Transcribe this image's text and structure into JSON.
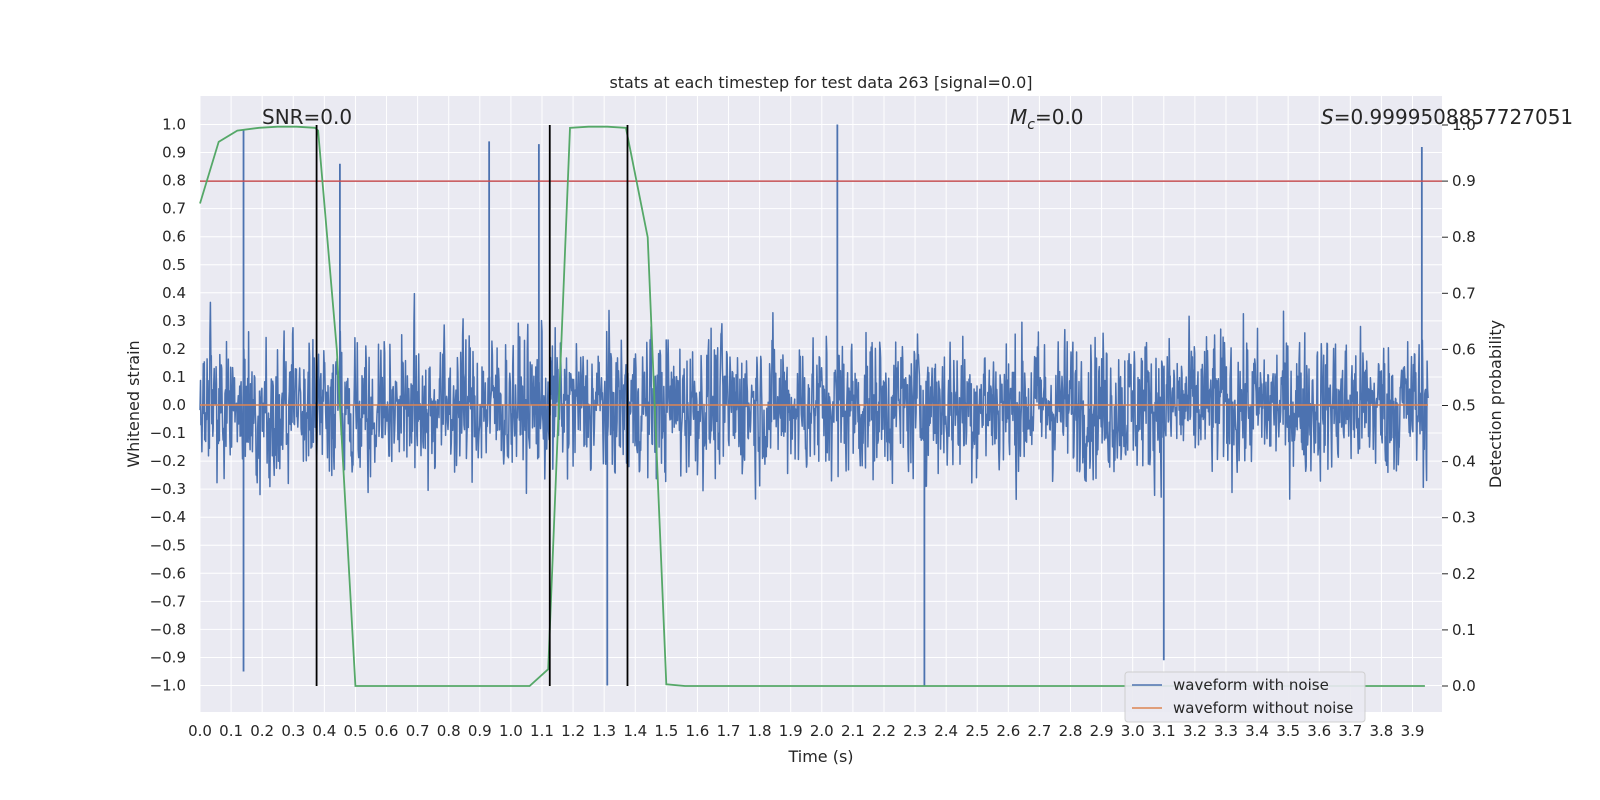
{
  "chart_data": {
    "type": "line",
    "title": "stats at each timestep for test data 263 [signal=0.0]",
    "xlabel": "Time (s)",
    "ylabel": "Whitened strain",
    "y2label": "Detection probability",
    "xlim": [
      0.0,
      3.99
    ],
    "ylim": [
      -1.1,
      1.1
    ],
    "y2lim": [
      -0.05,
      1.05
    ],
    "xticks": [
      "0.0",
      "0.1",
      "0.2",
      "0.3",
      "0.4",
      "0.5",
      "0.6",
      "0.7",
      "0.8",
      "0.9",
      "1.0",
      "1.1",
      "1.2",
      "1.3",
      "1.4",
      "1.5",
      "1.6",
      "1.7",
      "1.8",
      "1.9",
      "2.0",
      "2.1",
      "2.2",
      "2.3",
      "2.4",
      "2.5",
      "2.6",
      "2.7",
      "2.8",
      "2.9",
      "3.0",
      "3.1",
      "3.2",
      "3.3",
      "3.4",
      "3.5",
      "3.6",
      "3.7",
      "3.8",
      "3.9"
    ],
    "yticks": [
      "1.0",
      "0.9",
      "0.8",
      "0.7",
      "0.6",
      "0.5",
      "0.4",
      "0.3",
      "0.2",
      "0.1",
      "0.0",
      "−0.1",
      "−0.2",
      "−0.3",
      "−0.4",
      "−0.5",
      "−0.6",
      "−0.7",
      "−0.8",
      "−0.9",
      "−1.0"
    ],
    "y2ticks": [
      "1.0",
      "0.9",
      "0.8",
      "0.7",
      "0.6",
      "0.5",
      "0.4",
      "0.3",
      "0.2",
      "0.1",
      "0.0"
    ],
    "grid": true,
    "legend_position": "lower-right",
    "annotations": {
      "snr": "SNR=0.0",
      "mc_symbol": "M",
      "mc_sub": "c",
      "mc_value": "=0.0",
      "s_symbol": "S",
      "s_value": "=0.9999508857727051"
    },
    "series": [
      {
        "name": "waveform with noise",
        "color": "#4c72b0",
        "axis": "left",
        "description_of_values": "dense noise",
        "amplitude_range": [
          -1.0,
          1.0
        ],
        "notable_peaks": [
          [
            0.14,
            0.98
          ],
          [
            0.93,
            0.94
          ],
          [
            1.09,
            0.93
          ],
          [
            2.05,
            1.0
          ],
          [
            3.93,
            0.92
          ],
          [
            0.45,
            0.86
          ],
          [
            0.14,
            -0.95
          ],
          [
            2.33,
            -1.0
          ],
          [
            1.31,
            -1.0
          ],
          [
            3.1,
            -0.91
          ]
        ]
      },
      {
        "name": "waveform without noise",
        "color": "#dd8452",
        "axis": "left",
        "values_constant": 0.0
      },
      {
        "axis": "right",
        "color": "#55a868",
        "x": [
          0.0,
          0.06,
          0.12,
          0.19,
          0.25,
          0.31,
          0.37,
          0.38,
          0.44,
          0.5,
          0.56,
          0.62,
          0.69,
          0.75,
          0.81,
          0.87,
          0.94,
          1.0,
          1.06,
          1.12,
          1.19,
          1.25,
          1.31,
          1.37,
          1.44,
          1.5,
          1.56,
          3.94
        ],
        "values": [
          0.86,
          0.97,
          0.99,
          0.995,
          0.997,
          0.997,
          0.995,
          0.99,
          0.6,
          0.0,
          0.0,
          0.0,
          0.0,
          0.0,
          0.0,
          0.0,
          0.0,
          0.0,
          0.0,
          0.03,
          0.995,
          0.997,
          0.997,
          0.995,
          0.8,
          0.003,
          0.0,
          0.0
        ]
      },
      {
        "axis": "right",
        "color": "#c44e52",
        "values_constant": 0.9
      }
    ],
    "vlines": [
      0.375,
      1.125,
      1.375
    ]
  }
}
